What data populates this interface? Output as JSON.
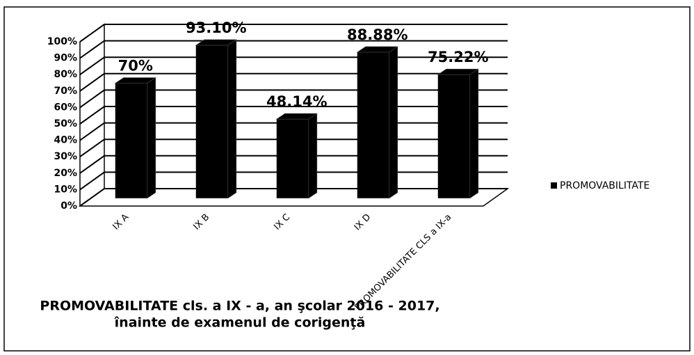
{
  "chart_data": {
    "type": "bar3d",
    "title": [
      "PROMOVABILITATE cls. a IX - a, an şcolar 2016 - 2017,",
      "înainte de examenul de corigenţă"
    ],
    "categories": [
      "IX A",
      "IX B",
      "IX C",
      "IX D",
      "PROMOVABILITATE CLS a IX-a"
    ],
    "series": [
      {
        "name": "PROMOVABILITATE",
        "color": "#000000",
        "values": [
          70,
          93.1,
          48.14,
          88.88,
          75.22
        ],
        "value_labels": [
          "70%",
          "93.10%",
          "48.14%",
          "88.88%",
          "75.22%"
        ]
      }
    ],
    "ylim": [
      0,
      100
    ],
    "yticks": [
      {
        "value": 0,
        "label": "0%"
      },
      {
        "value": 10,
        "label": "10%"
      },
      {
        "value": 20,
        "label": "20%"
      },
      {
        "value": 30,
        "label": "30%"
      },
      {
        "value": 40,
        "label": "40%"
      },
      {
        "value": 50,
        "label": "50%"
      },
      {
        "value": 60,
        "label": "60%"
      },
      {
        "value": 70,
        "label": "70%"
      },
      {
        "value": 80,
        "label": "80%"
      },
      {
        "value": 90,
        "label": "90%"
      },
      {
        "value": 100,
        "label": "100%"
      }
    ],
    "grid": true,
    "legend": "right"
  }
}
